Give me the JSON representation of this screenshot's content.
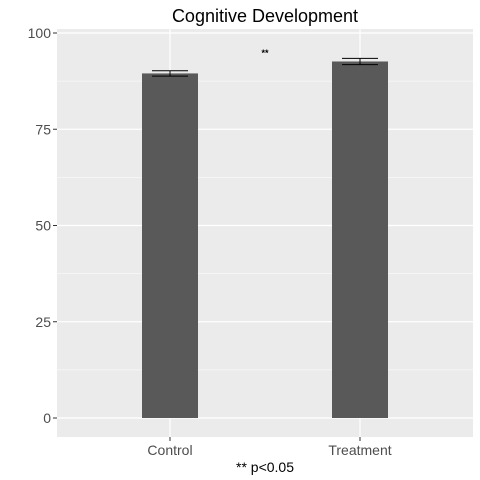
{
  "chart_data": {
    "type": "bar",
    "title": "Cognitive Development",
    "categories": [
      "Control",
      "Treatment"
    ],
    "values": [
      89.5,
      92.6
    ],
    "error_low": [
      88.8,
      91.8
    ],
    "error_high": [
      90.2,
      93.4
    ],
    "xlabel": "** p<0.05",
    "ylabel": "",
    "ylim": [
      0,
      100
    ],
    "yticks": [
      0,
      25,
      50,
      75,
      100
    ],
    "annotation": "**",
    "annotation_y": 94.5,
    "grid": true,
    "colors": {
      "panel": "#ebebeb",
      "bar": "#595959",
      "grid": "#ffffff",
      "tick_text": "#4d4d4d"
    }
  }
}
